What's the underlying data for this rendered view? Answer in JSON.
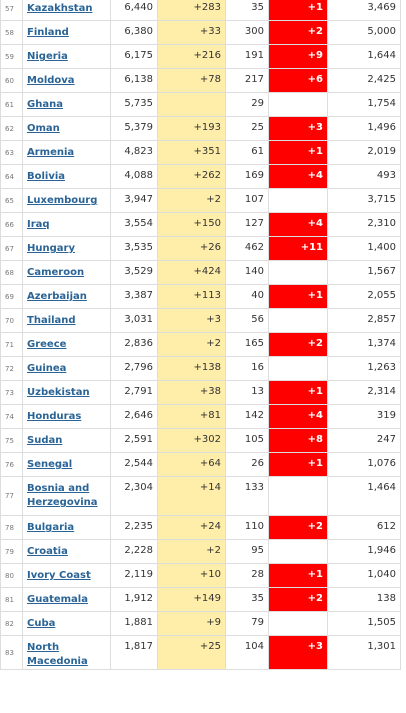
{
  "table": {
    "rows": [
      [
        "57",
        "Kazakhstan",
        "6,440",
        "+283",
        "35",
        "+1",
        "3,469"
      ],
      [
        "58",
        "Finland",
        "6,380",
        "+33",
        "300",
        "+2",
        "5,000"
      ],
      [
        "59",
        "Nigeria",
        "6,175",
        "+216",
        "191",
        "+9",
        "1,644"
      ],
      [
        "60",
        "Moldova",
        "6,138",
        "+78",
        "217",
        "+6",
        "2,425"
      ],
      [
        "61",
        "Ghana",
        "5,735",
        null,
        "29",
        null,
        "1,754"
      ],
      [
        "62",
        "Oman",
        "5,379",
        "+193",
        "25",
        "+3",
        "1,496"
      ],
      [
        "63",
        "Armenia",
        "4,823",
        "+351",
        "61",
        "+1",
        "2,019"
      ],
      [
        "64",
        "Bolivia",
        "4,088",
        "+262",
        "169",
        "+4",
        "493"
      ],
      [
        "65",
        "Luxembourg",
        "3,947",
        "+2",
        "107",
        null,
        "3,715"
      ],
      [
        "66",
        "Iraq",
        "3,554",
        "+150",
        "127",
        "+4",
        "2,310"
      ],
      [
        "67",
        "Hungary",
        "3,535",
        "+26",
        "462",
        "+11",
        "1,400"
      ],
      [
        "68",
        "Cameroon",
        "3,529",
        "+424",
        "140",
        null,
        "1,567"
      ],
      [
        "69",
        "Azerbaijan",
        "3,387",
        "+113",
        "40",
        "+1",
        "2,055"
      ],
      [
        "70",
        "Thailand",
        "3,031",
        "+3",
        "56",
        null,
        "2,857"
      ],
      [
        "71",
        "Greece",
        "2,836",
        "+2",
        "165",
        "+2",
        "1,374"
      ],
      [
        "72",
        "Guinea",
        "2,796",
        "+138",
        "16",
        null,
        "1,263"
      ],
      [
        "73",
        "Uzbekistan",
        "2,791",
        "+38",
        "13",
        "+1",
        "2,314"
      ],
      [
        "74",
        "Honduras",
        "2,646",
        "+81",
        "142",
        "+4",
        "319"
      ],
      [
        "75",
        "Sudan",
        "2,591",
        "+302",
        "105",
        "+8",
        "247"
      ],
      [
        "76",
        "Senegal",
        "2,544",
        "+64",
        "26",
        "+1",
        "1,076"
      ],
      [
        "77",
        "Bosnia and Herzegovina",
        "2,304",
        "+14",
        "133",
        null,
        "1,464"
      ],
      [
        "78",
        "Bulgaria",
        "2,235",
        "+24",
        "110",
        "+2",
        "612"
      ],
      [
        "79",
        "Croatia",
        "2,228",
        "+2",
        "95",
        null,
        "1,946"
      ],
      [
        "80",
        "Ivory Coast",
        "2,119",
        "+10",
        "28",
        "+1",
        "1,040"
      ],
      [
        "81",
        "Guatemala",
        "1,912",
        "+149",
        "35",
        "+2",
        "138"
      ],
      [
        "82",
        "Cuba",
        "1,881",
        "+9",
        "79",
        null,
        "1,505"
      ],
      [
        "83",
        "North Macedonia",
        "1,817",
        "+25",
        "104",
        "+3",
        "1,301"
      ]
    ]
  }
}
